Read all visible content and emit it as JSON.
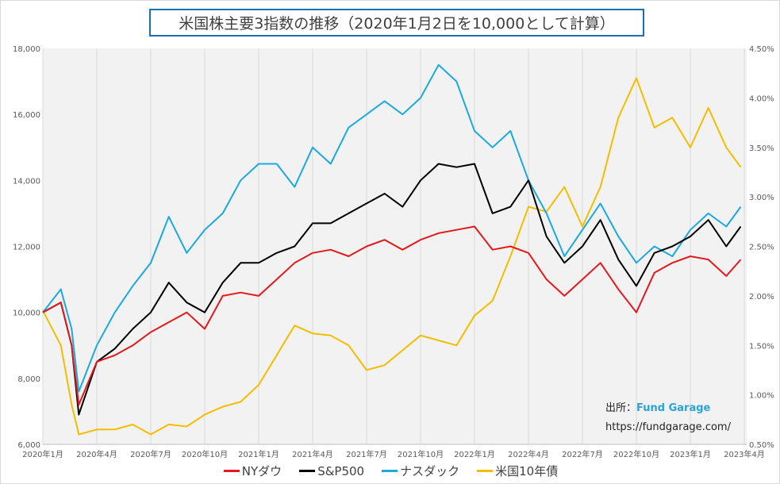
{
  "chart_data": {
    "type": "line",
    "title": "米国株主要3指数の推移（2020年1月2日を10,000として計算）",
    "x": [
      "2020-01",
      "2020-02",
      "2020-03a",
      "2020-03",
      "2020-04",
      "2020-05",
      "2020-06",
      "2020-07",
      "2020-08",
      "2020-09",
      "2020-10",
      "2020-11",
      "2020-12",
      "2021-01",
      "2021-02",
      "2021-03",
      "2021-04",
      "2021-05",
      "2021-06",
      "2021-07",
      "2021-08",
      "2021-09",
      "2021-10",
      "2021-11",
      "2021-12",
      "2022-01",
      "2022-02",
      "2022-03",
      "2022-04",
      "2022-05",
      "2022-06",
      "2022-07",
      "2022-08",
      "2022-09",
      "2022-10",
      "2022-11",
      "2022-12",
      "2023-01",
      "2023-02",
      "2023-03",
      "2023-03b"
    ],
    "xtick_labels": [
      "2020年1月",
      "2020年4月",
      "2020年7月",
      "2020年10月",
      "2021年1月",
      "2021年4月",
      "2021年7月",
      "2021年10月",
      "2022年1月",
      "2022年4月",
      "2022年7月",
      "2022年10月",
      "2023年1月",
      "2023年4月"
    ],
    "ylim": [
      6000,
      18000
    ],
    "yticks": [
      "6,000",
      "8,000",
      "10,000",
      "12,000",
      "14,000",
      "16,000",
      "18,000"
    ],
    "y2lim": [
      0.5,
      4.5
    ],
    "y2ticks": [
      "0.50%",
      "1.00%",
      "1.50%",
      "2.00%",
      "2.50%",
      "3.00%",
      "3.50%",
      "4.00%",
      "4.50%"
    ],
    "grid": "vertical",
    "legend_placement": "bottom",
    "series": [
      {
        "name": "NYダウ",
        "axis": "left",
        "color": "#e31a1c",
        "values": [
          10000,
          10300,
          9000,
          7200,
          8500,
          8700,
          9000,
          9400,
          9700,
          10000,
          9500,
          10500,
          10600,
          10500,
          11000,
          11500,
          11800,
          11900,
          11700,
          12000,
          12200,
          11900,
          12200,
          12400,
          12500,
          12600,
          11900,
          12000,
          11800,
          11000,
          10500,
          11000,
          11500,
          10700,
          10000,
          11200,
          11500,
          11700,
          11600,
          11100,
          11600
        ]
      },
      {
        "name": "S&P500",
        "axis": "left",
        "color": "#000000",
        "values": [
          10000,
          10300,
          9000,
          6900,
          8500,
          8900,
          9500,
          10000,
          10900,
          10300,
          10000,
          10900,
          11500,
          11500,
          11800,
          12000,
          12700,
          12700,
          13000,
          13300,
          13600,
          13200,
          14000,
          14500,
          14400,
          14500,
          13000,
          13200,
          14000,
          12300,
          11500,
          12000,
          12800,
          11600,
          10800,
          11800,
          12000,
          12300,
          12800,
          12000,
          12600
        ]
      },
      {
        "name": "ナスダック",
        "axis": "left",
        "color": "#1ca9e1",
        "values": [
          10000,
          10700,
          9500,
          7600,
          9000,
          10000,
          10800,
          11500,
          12900,
          11800,
          12500,
          13000,
          14000,
          14500,
          14500,
          13800,
          15000,
          14500,
          15600,
          16000,
          16400,
          16000,
          16500,
          17500,
          17000,
          15500,
          15000,
          15500,
          14000,
          13000,
          11700,
          12500,
          13300,
          12300,
          11500,
          12000,
          11700,
          12500,
          13000,
          12600,
          13200
        ]
      },
      {
        "name": "米国10年債",
        "axis": "right",
        "color": "#f5bd00",
        "values": [
          1.85,
          1.5,
          0.9,
          0.6,
          0.65,
          0.65,
          0.7,
          0.6,
          0.7,
          0.68,
          0.8,
          0.88,
          0.93,
          1.1,
          1.4,
          1.7,
          1.62,
          1.6,
          1.5,
          1.25,
          1.3,
          1.45,
          1.6,
          1.55,
          1.5,
          1.8,
          1.95,
          2.4,
          2.9,
          2.85,
          3.1,
          2.7,
          3.1,
          3.8,
          4.2,
          3.7,
          3.8,
          3.5,
          3.9,
          3.5,
          3.3
        ]
      }
    ]
  },
  "source": {
    "label": "出所：",
    "brand": "Fund Garage",
    "url": "https://fundgarage.com/"
  }
}
